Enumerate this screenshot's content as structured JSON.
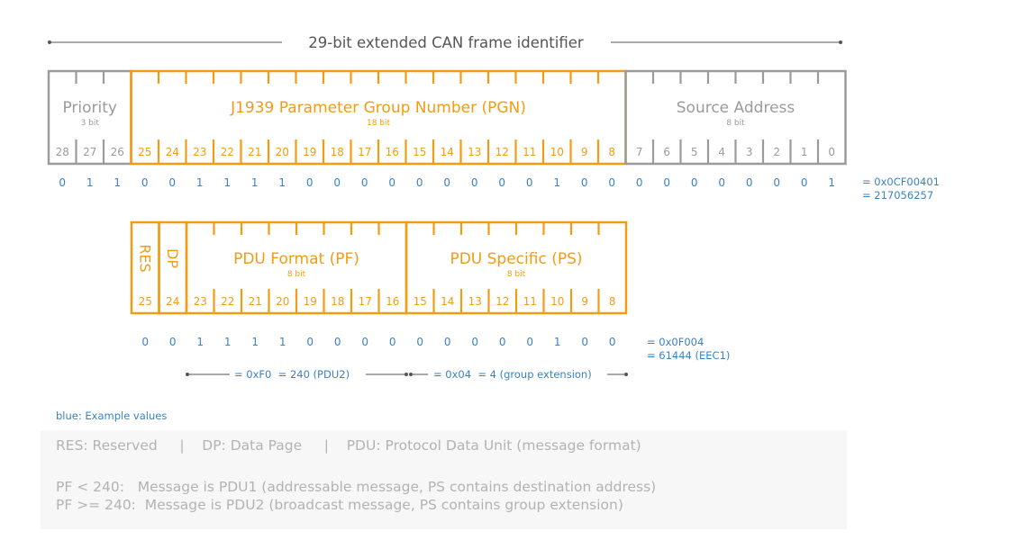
{
  "title": "29-bit extended CAN frame identifier",
  "colors": {
    "gray": "#9b9b9b",
    "gray_light": "#b3b3b3",
    "orange": "#f39c12",
    "blue": "#3b82c4"
  },
  "frame": {
    "fields": [
      {
        "label": "Priority",
        "sub": "3 bit",
        "from": 28,
        "to": 26,
        "color": "gray"
      },
      {
        "label": "J1939 Parameter Group Number (PGN)",
        "sub": "18 bit",
        "from": 25,
        "to": 8,
        "color": "orange"
      },
      {
        "label": "Source Address",
        "sub": "8 bit",
        "from": 7,
        "to": 0,
        "color": "gray"
      }
    ],
    "bits": [
      28,
      27,
      26,
      25,
      24,
      23,
      22,
      21,
      20,
      19,
      18,
      17,
      16,
      15,
      14,
      13,
      12,
      11,
      10,
      9,
      8,
      7,
      6,
      5,
      4,
      3,
      2,
      1,
      0
    ],
    "values": [
      0,
      1,
      1,
      0,
      0,
      1,
      1,
      1,
      1,
      0,
      0,
      0,
      0,
      0,
      0,
      0,
      0,
      0,
      1,
      0,
      0,
      0,
      0,
      0,
      0,
      0,
      0,
      0,
      1
    ],
    "hex": "= 0x0CF00401",
    "dec": "= 217056257"
  },
  "pgn": {
    "fields": [
      {
        "label": "RES",
        "from": 25,
        "to": 25,
        "vertical": true
      },
      {
        "label": "DP",
        "from": 24,
        "to": 24,
        "vertical": true
      },
      {
        "label": "PDU Format (PF)",
        "sub": "8 bit",
        "from": 23,
        "to": 16
      },
      {
        "label": "PDU Specific (PS)",
        "sub": "8 bit",
        "from": 15,
        "to": 8
      }
    ],
    "bits": [
      25,
      24,
      23,
      22,
      21,
      20,
      19,
      18,
      17,
      16,
      15,
      14,
      13,
      12,
      11,
      10,
      9,
      8
    ],
    "values": [
      0,
      0,
      1,
      1,
      1,
      1,
      0,
      0,
      0,
      0,
      0,
      0,
      0,
      0,
      0,
      1,
      0,
      0
    ],
    "hex": "= 0x0F004",
    "dec": "= 61444 (EEC1)",
    "pf_value": "= 0xF0  = 240 (PDU2)",
    "ps_value": "= 0x04  = 4 (group extension)"
  },
  "note": "blue: Example values",
  "legend": {
    "line1": "RES: Reserved     |    DP: Data Page     |    PDU: Protocol Data Unit (message format)",
    "line2": "PF < 240:   Message is PDU1 (addressable message, PS contains destination address)",
    "line3": "PF >= 240:  Message is PDU2 (broadcast message, PS contains group extension)"
  }
}
